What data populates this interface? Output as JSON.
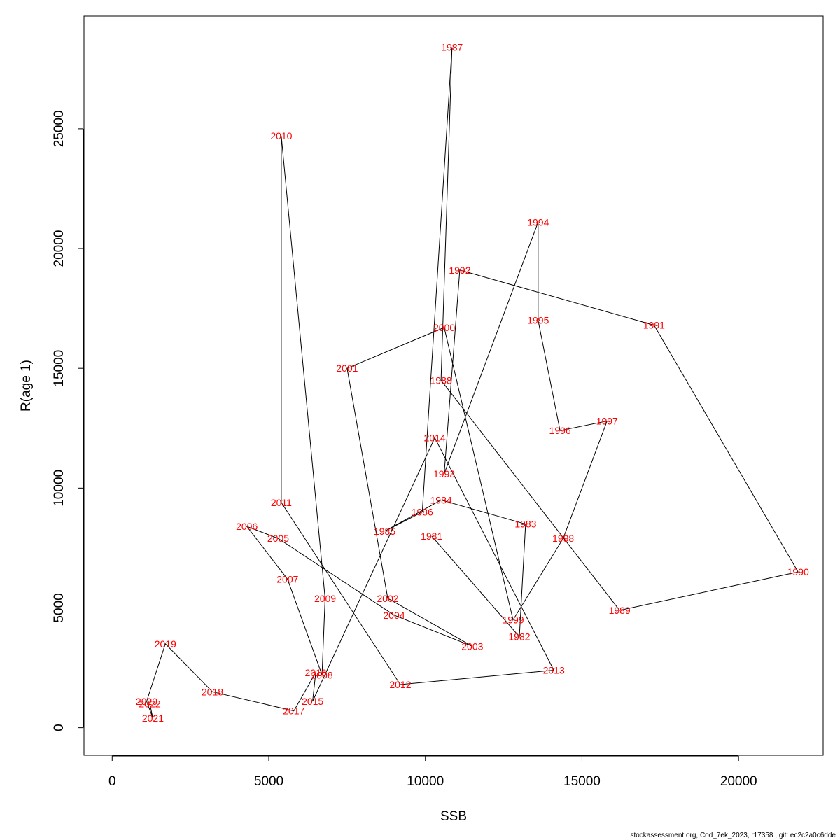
{
  "chart_data": {
    "type": "line",
    "xlabel": "SSB",
    "ylabel": "R(age 1)",
    "xlim": [
      -900,
      22700
    ],
    "ylim": [
      -1150,
      29700
    ],
    "xticks": [
      0,
      5000,
      10000,
      15000,
      20000
    ],
    "yticks": [
      0,
      5000,
      10000,
      15000,
      20000,
      25000
    ],
    "grid": false,
    "legend": "none",
    "line_color": "#000000",
    "label_color": "#ff0000",
    "points": [
      {
        "year": "1981",
        "x": 10200,
        "y": 8000
      },
      {
        "year": "1982",
        "x": 13000,
        "y": 3800
      },
      {
        "year": "1983",
        "x": 13200,
        "y": 8500
      },
      {
        "year": "1984",
        "x": 10500,
        "y": 9500
      },
      {
        "year": "1985",
        "x": 8700,
        "y": 8200
      },
      {
        "year": "1986",
        "x": 9900,
        "y": 9000
      },
      {
        "year": "1987",
        "x": 10850,
        "y": 28400
      },
      {
        "year": "1988",
        "x": 10500,
        "y": 14500
      },
      {
        "year": "1989",
        "x": 16200,
        "y": 4900
      },
      {
        "year": "1990",
        "x": 21900,
        "y": 6500
      },
      {
        "year": "1991",
        "x": 17300,
        "y": 16800
      },
      {
        "year": "1992",
        "x": 11100,
        "y": 19100
      },
      {
        "year": "1993",
        "x": 10600,
        "y": 10600
      },
      {
        "year": "1994",
        "x": 13600,
        "y": 21100
      },
      {
        "year": "1995",
        "x": 13600,
        "y": 17000
      },
      {
        "year": "1996",
        "x": 14300,
        "y": 12400
      },
      {
        "year": "1997",
        "x": 15800,
        "y": 12800
      },
      {
        "year": "1998",
        "x": 14400,
        "y": 7900
      },
      {
        "year": "1999",
        "x": 12800,
        "y": 4500
      },
      {
        "year": "2000",
        "x": 10600,
        "y": 16700
      },
      {
        "year": "2001",
        "x": 7500,
        "y": 15000
      },
      {
        "year": "2002",
        "x": 8800,
        "y": 5400
      },
      {
        "year": "2003",
        "x": 11500,
        "y": 3400
      },
      {
        "year": "2004",
        "x": 9000,
        "y": 4700
      },
      {
        "year": "2005",
        "x": 5300,
        "y": 7900
      },
      {
        "year": "2006",
        "x": 4300,
        "y": 8400
      },
      {
        "year": "2007",
        "x": 5600,
        "y": 6200
      },
      {
        "year": "2008",
        "x": 6700,
        "y": 2200
      },
      {
        "year": "2009",
        "x": 6800,
        "y": 5400
      },
      {
        "year": "2010",
        "x": 5400,
        "y": 24700
      },
      {
        "year": "2011",
        "x": 5400,
        "y": 9400
      },
      {
        "year": "2012",
        "x": 9200,
        "y": 1800
      },
      {
        "year": "2013",
        "x": 14100,
        "y": 2400
      },
      {
        "year": "2014",
        "x": 10300,
        "y": 12100
      },
      {
        "year": "2015",
        "x": 6400,
        "y": 1100
      },
      {
        "year": "2016",
        "x": 6500,
        "y": 2300
      },
      {
        "year": "2017",
        "x": 5800,
        "y": 700
      },
      {
        "year": "2018",
        "x": 3200,
        "y": 1500
      },
      {
        "year": "2019",
        "x": 1700,
        "y": 3500
      },
      {
        "year": "2020",
        "x": 1100,
        "y": 1100
      },
      {
        "year": "2021",
        "x": 1300,
        "y": 400
      },
      {
        "year": "2022",
        "x": 1200,
        "y": 1000
      }
    ]
  },
  "footer": "stockassessment.org, Cod_7ek_2023, r17358 , git: ec2c2a0c6dde"
}
